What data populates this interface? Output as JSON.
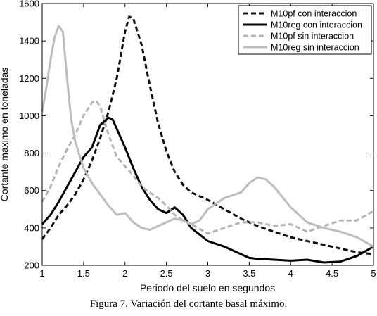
{
  "caption": "Figura 7. Variación del cortante basal máximo.",
  "chart_data": {
    "type": "line",
    "title": "",
    "xlabel": "Periodo del suelo en segundos",
    "ylabel": "Cortante maximo en toneladas",
    "xlim": [
      1,
      5
    ],
    "ylim": [
      200,
      1600
    ],
    "xticks": [
      1,
      1.5,
      2,
      2.5,
      3,
      3.5,
      4,
      4.5,
      5
    ],
    "xtick_labels": [
      "1",
      "1.5",
      "2",
      "2.5",
      "3",
      "3.5",
      "4",
      "4.5",
      "5"
    ],
    "yticks": [
      200,
      400,
      600,
      800,
      1000,
      1200,
      1400,
      1600
    ],
    "ytick_labels": [
      "200",
      "400",
      "600",
      "800",
      "1000",
      "1200",
      "1400",
      "1600"
    ],
    "grid": false,
    "legend_position": "top-right",
    "series": [
      {
        "name": "M10pf con interaccion",
        "color": "#111111",
        "style": "dashed",
        "x": [
          1.0,
          1.1,
          1.2,
          1.3,
          1.4,
          1.5,
          1.6,
          1.7,
          1.8,
          1.9,
          2.0,
          2.05,
          2.1,
          2.2,
          2.3,
          2.4,
          2.5,
          2.6,
          2.7,
          2.8,
          2.9,
          3.0,
          3.2,
          3.4,
          3.6,
          3.8,
          4.0,
          4.2,
          4.4,
          4.6,
          4.8,
          5.0
        ],
        "y": [
          340,
          400,
          470,
          520,
          580,
          660,
          760,
          880,
          1020,
          1200,
          1450,
          1530,
          1520,
          1380,
          1160,
          960,
          810,
          700,
          630,
          590,
          570,
          550,
          500,
          450,
          410,
          380,
          350,
          330,
          310,
          290,
          270,
          260
        ]
      },
      {
        "name": "M10reg con interaccion",
        "color": "#000000",
        "style": "solid",
        "x": [
          1.0,
          1.1,
          1.2,
          1.3,
          1.4,
          1.5,
          1.6,
          1.7,
          1.8,
          1.85,
          1.9,
          2.0,
          2.1,
          2.2,
          2.3,
          2.4,
          2.5,
          2.6,
          2.7,
          2.8,
          3.0,
          3.2,
          3.4,
          3.5,
          3.6,
          3.8,
          4.0,
          4.2,
          4.4,
          4.6,
          4.8,
          5.0
        ],
        "y": [
          420,
          470,
          540,
          620,
          700,
          780,
          830,
          950,
          990,
          980,
          930,
          830,
          720,
          620,
          550,
          500,
          480,
          510,
          470,
          400,
          330,
          300,
          260,
          240,
          235,
          230,
          225,
          230,
          215,
          220,
          250,
          300
        ]
      },
      {
        "name": "M10pf sin interaccion",
        "color": "#b4b4b4",
        "style": "dashed",
        "x": [
          1.0,
          1.1,
          1.2,
          1.3,
          1.4,
          1.5,
          1.6,
          1.65,
          1.7,
          1.8,
          1.9,
          2.0,
          2.1,
          2.2,
          2.3,
          2.4,
          2.5,
          2.6,
          2.7,
          2.8,
          3.0,
          3.2,
          3.4,
          3.6,
          3.8,
          4.0,
          4.2,
          4.4,
          4.6,
          4.8,
          5.0
        ],
        "y": [
          540,
          620,
          730,
          820,
          900,
          1000,
          1070,
          1080,
          1050,
          900,
          780,
          730,
          680,
          620,
          590,
          560,
          520,
          470,
          440,
          420,
          370,
          400,
          430,
          430,
          410,
          420,
          380,
          410,
          440,
          440,
          490
        ]
      },
      {
        "name": "M10reg sin interaccion",
        "color": "#bdbdbd",
        "style": "solid",
        "x": [
          1.0,
          1.05,
          1.1,
          1.15,
          1.2,
          1.25,
          1.3,
          1.35,
          1.4,
          1.5,
          1.6,
          1.7,
          1.8,
          1.9,
          2.0,
          2.1,
          2.2,
          2.3,
          2.4,
          2.5,
          2.6,
          2.7,
          2.8,
          2.9,
          3.0,
          3.2,
          3.4,
          3.5,
          3.6,
          3.7,
          3.8,
          4.0,
          4.2,
          4.4,
          4.6,
          4.8,
          5.0
        ],
        "y": [
          1020,
          1150,
          1300,
          1420,
          1480,
          1450,
          1200,
          980,
          860,
          720,
          640,
          580,
          520,
          470,
          480,
          430,
          400,
          390,
          410,
          430,
          450,
          440,
          420,
          440,
          500,
          560,
          590,
          640,
          670,
          660,
          620,
          510,
          430,
          400,
          380,
          350,
          300
        ]
      }
    ]
  }
}
